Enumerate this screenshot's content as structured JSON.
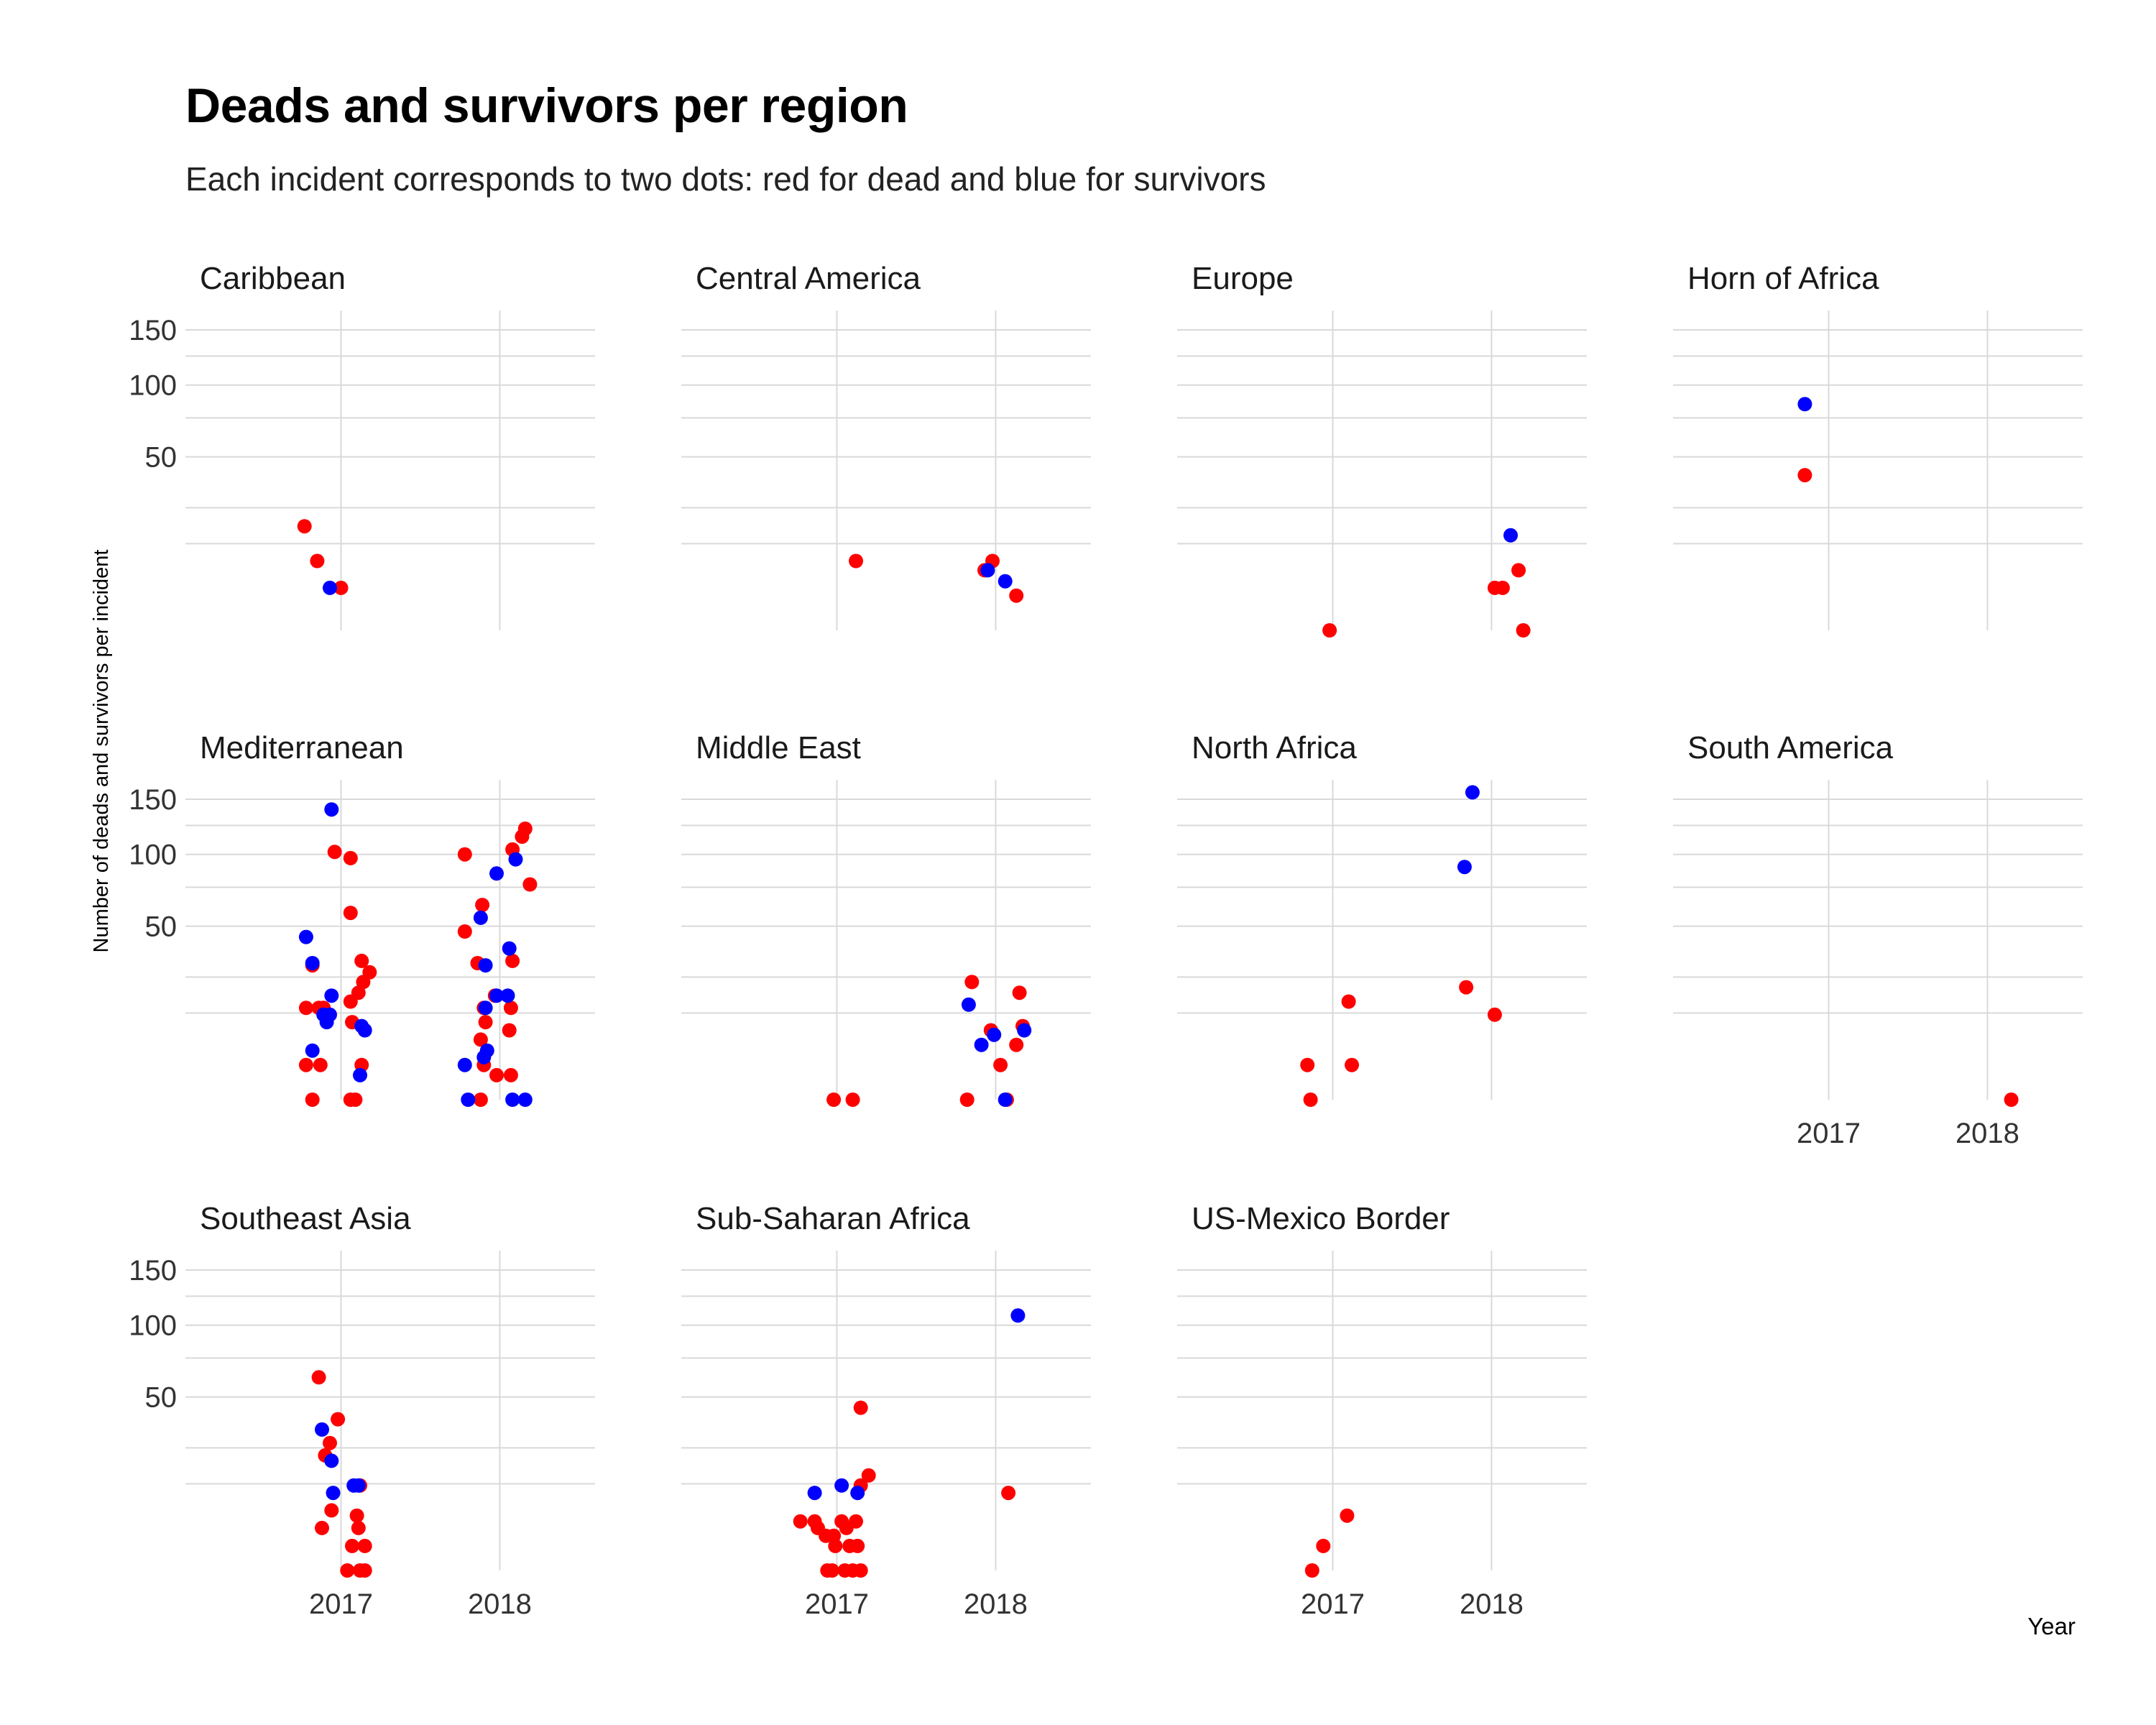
{
  "chart_data": {
    "type": "scatter",
    "title": "Deads and survivors per region",
    "subtitle": "Each incident corresponds to two dots: red for dead and blue for survivors",
    "xlabel": "Year",
    "ylabel": "Number of deads and survivors per incident",
    "x_ticks": [
      "2017",
      "2018"
    ],
    "y_ticks": [
      50,
      100,
      150
    ],
    "y_scale": "sqrt",
    "ylim": [
      0,
      170
    ],
    "xlim": [
      2016.02,
      2018.6
    ],
    "grid": true,
    "colors": {
      "dead": "#ff0000",
      "survivors": "#0000ff",
      "grid": "#d9d9d9"
    },
    "series": [
      {
        "name": "dead",
        "color": "#ff0000"
      },
      {
        "name": "survivors",
        "color": "#0000ff"
      }
    ],
    "panels": [
      {
        "name": "Caribbean",
        "dead": [
          [
            16.77,
            18
          ],
          [
            16.85,
            8
          ],
          [
            17.0,
            3
          ]
        ],
        "survivors": [
          [
            16.93,
            3
          ]
        ]
      },
      {
        "name": "Central America",
        "dead": [
          [
            17.12,
            8
          ],
          [
            17.93,
            6
          ],
          [
            17.98,
            8
          ],
          [
            18.13,
            2
          ]
        ],
        "survivors": [
          [
            17.95,
            6
          ],
          [
            18.06,
            4
          ]
        ]
      },
      {
        "name": "Europe",
        "dead": [
          [
            16.98,
            0
          ],
          [
            18.02,
            3
          ],
          [
            18.07,
            3
          ],
          [
            18.17,
            6
          ],
          [
            18.2,
            0
          ]
        ],
        "survivors": [
          [
            18.12,
            15
          ]
        ]
      },
      {
        "name": "Horn of Africa",
        "dead": [
          [
            16.85,
            40
          ]
        ],
        "survivors": [
          [
            16.85,
            85
          ]
        ]
      },
      {
        "name": "Mediterranean",
        "dead": [
          [
            16.82,
            30
          ],
          [
            16.78,
            14
          ],
          [
            16.86,
            14
          ],
          [
            16.89,
            14
          ],
          [
            16.78,
            2
          ],
          [
            16.87,
            2
          ],
          [
            16.82,
            0
          ],
          [
            16.96,
            102
          ],
          [
            17.06,
            97
          ],
          [
            17.06,
            58
          ],
          [
            17.13,
            32
          ],
          [
            17.18,
            27
          ],
          [
            17.14,
            23
          ],
          [
            17.11,
            19
          ],
          [
            17.06,
            16
          ],
          [
            17.07,
            10
          ],
          [
            17.13,
            2
          ],
          [
            17.06,
            0
          ],
          [
            17.09,
            0
          ],
          [
            17.78,
            100
          ],
          [
            17.78,
            47
          ],
          [
            17.89,
            63
          ],
          [
            17.86,
            31
          ],
          [
            17.9,
            14
          ],
          [
            17.88,
            6
          ],
          [
            17.9,
            2
          ],
          [
            17.88,
            0
          ],
          [
            17.97,
            18
          ],
          [
            17.91,
            10
          ],
          [
            17.98,
            1
          ],
          [
            18.08,
            104
          ],
          [
            18.14,
            115
          ],
          [
            18.16,
            122
          ],
          [
            18.19,
            77
          ],
          [
            18.08,
            32
          ],
          [
            18.07,
            14
          ],
          [
            18.06,
            8
          ],
          [
            18.07,
            1
          ]
        ],
        "survivors": [
          [
            16.78,
            44
          ],
          [
            16.82,
            31
          ],
          [
            16.94,
            18
          ],
          [
            16.89,
            12
          ],
          [
            16.93,
            12
          ],
          [
            16.91,
            10
          ],
          [
            16.82,
            4
          ],
          [
            16.94,
            140
          ],
          [
            17.13,
            9
          ],
          [
            17.15,
            8
          ],
          [
            17.12,
            1
          ],
          [
            17.78,
            2
          ],
          [
            17.8,
            0
          ],
          [
            17.88,
            55
          ],
          [
            17.91,
            30
          ],
          [
            17.92,
            4
          ],
          [
            17.9,
            3
          ],
          [
            17.98,
            85
          ],
          [
            17.98,
            18
          ],
          [
            18.06,
            38
          ],
          [
            18.05,
            18
          ],
          [
            17.91,
            14
          ],
          [
            18.1,
            96
          ],
          [
            18.16,
            0
          ],
          [
            18.08,
            0
          ]
        ]
      },
      {
        "name": "Middle East",
        "dead": [
          [
            16.98,
            0
          ],
          [
            17.1,
            0
          ],
          [
            17.85,
            23
          ],
          [
            17.82,
            0
          ],
          [
            17.97,
            8
          ],
          [
            18.03,
            2
          ],
          [
            18.13,
            5
          ],
          [
            18.15,
            19
          ],
          [
            18.17,
            9
          ],
          [
            18.07,
            0
          ]
        ],
        "survivors": [
          [
            17.83,
            15
          ],
          [
            17.91,
            5
          ],
          [
            17.99,
            7
          ],
          [
            18.18,
            8
          ],
          [
            18.06,
            0
          ]
        ]
      },
      {
        "name": "North Africa",
        "dead": [
          [
            16.84,
            2
          ],
          [
            16.86,
            0
          ],
          [
            17.1,
            16
          ],
          [
            17.12,
            2
          ],
          [
            17.84,
            21
          ],
          [
            18.02,
            12
          ]
        ],
        "survivors": [
          [
            17.88,
            157
          ],
          [
            17.83,
            90
          ]
        ]
      },
      {
        "name": "South America",
        "dead": [
          [
            18.15,
            0
          ]
        ],
        "survivors": []
      },
      {
        "name": "Southeast Asia",
        "dead": [
          [
            16.86,
            62
          ],
          [
            16.98,
            38
          ],
          [
            16.93,
            27
          ],
          [
            16.9,
            22
          ],
          [
            16.94,
            6
          ],
          [
            16.88,
            3
          ],
          [
            17.12,
            12
          ],
          [
            17.1,
            5
          ],
          [
            17.11,
            3
          ],
          [
            17.07,
            1
          ],
          [
            17.15,
            1
          ],
          [
            17.12,
            0
          ],
          [
            17.04,
            0
          ],
          [
            17.15,
            0
          ]
        ],
        "survivors": [
          [
            16.88,
            33
          ],
          [
            16.94,
            20
          ],
          [
            16.95,
            10
          ],
          [
            17.08,
            12
          ],
          [
            17.11,
            12
          ]
        ]
      },
      {
        "name": "Sub-Saharan Africa",
        "dead": [
          [
            16.77,
            4
          ],
          [
            16.86,
            4
          ],
          [
            16.88,
            3
          ],
          [
            16.93,
            2
          ],
          [
            16.94,
            0
          ],
          [
            16.98,
            2
          ],
          [
            17.03,
            4
          ],
          [
            17.06,
            3
          ],
          [
            17.08,
            1
          ],
          [
            17.12,
            4
          ],
          [
            17.13,
            1
          ],
          [
            16.99,
            1
          ],
          [
            16.97,
            0
          ],
          [
            17.05,
            0
          ],
          [
            17.1,
            0
          ],
          [
            17.15,
            0
          ],
          [
            17.15,
            44
          ],
          [
            17.2,
            15
          ],
          [
            17.15,
            12
          ],
          [
            18.08,
            10
          ]
        ],
        "survivors": [
          [
            16.86,
            10
          ],
          [
            17.03,
            12
          ],
          [
            17.13,
            10
          ],
          [
            18.14,
            108
          ]
        ]
      },
      {
        "name": "US-Mexico Border",
        "dead": [
          [
            16.87,
            0
          ],
          [
            16.94,
            1
          ],
          [
            17.09,
            5
          ]
        ],
        "survivors": []
      }
    ]
  }
}
